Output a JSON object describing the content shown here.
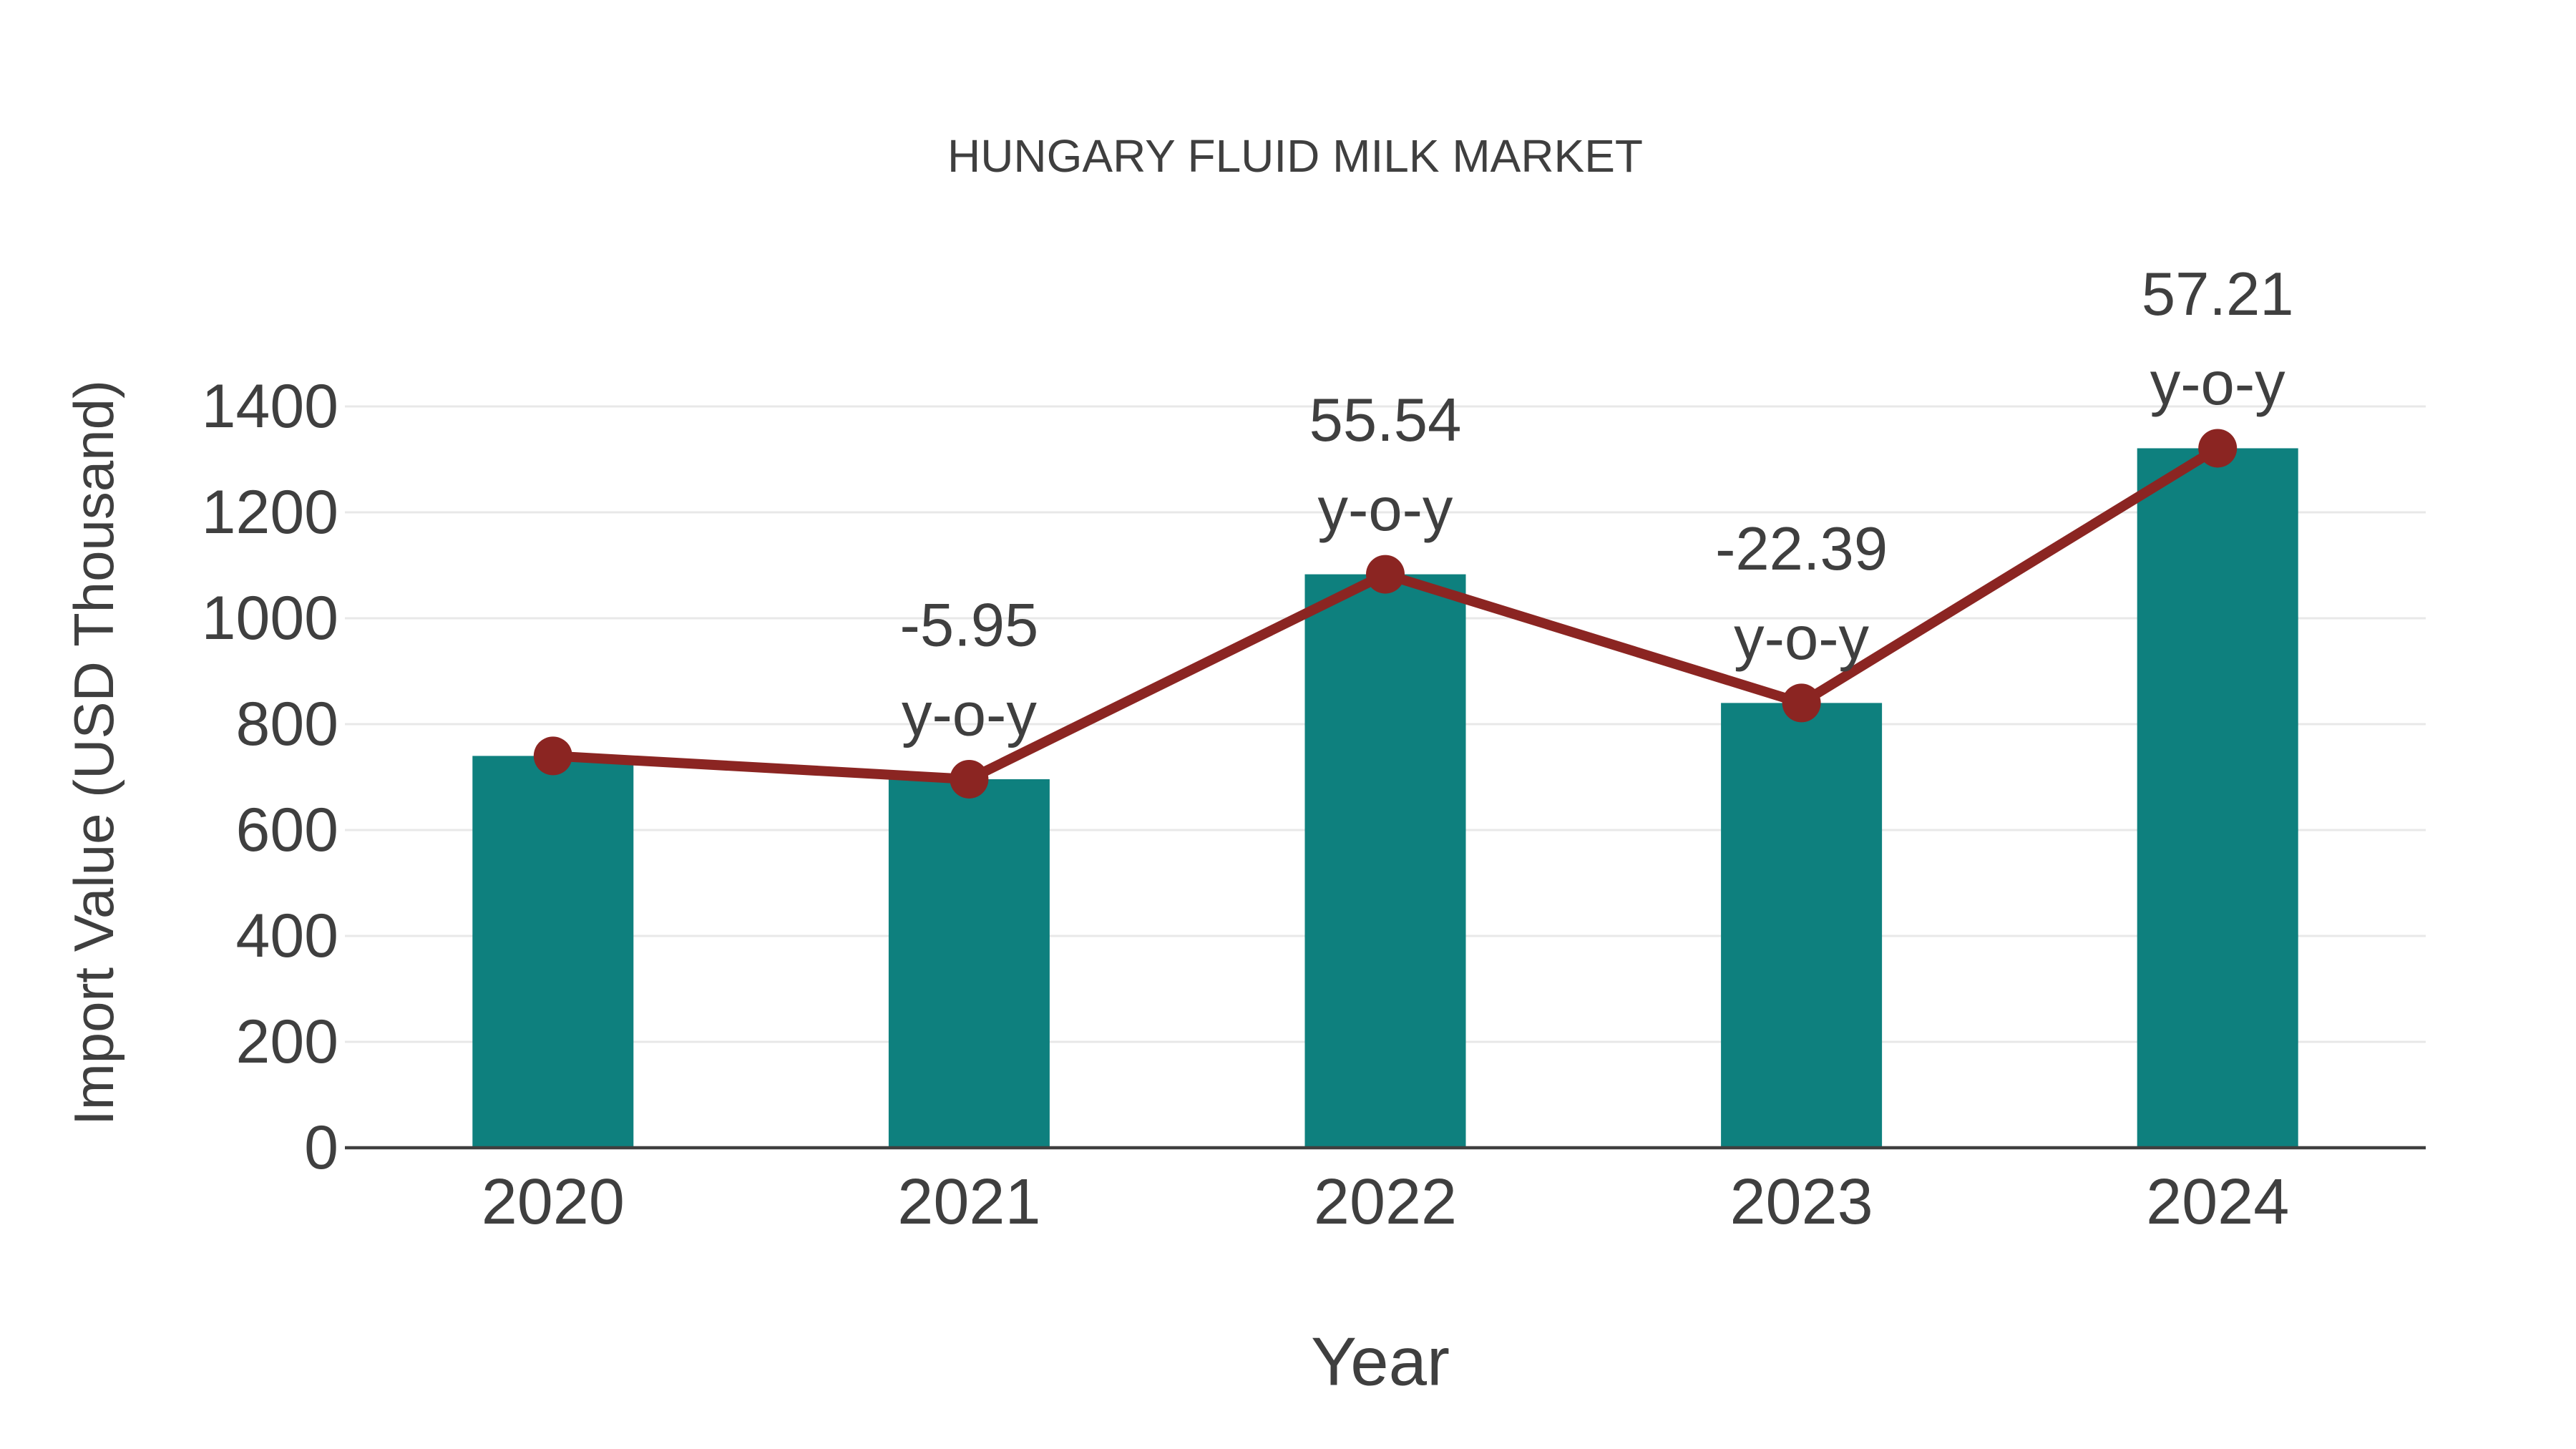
{
  "page": {
    "background": "#ffffff"
  },
  "chart_data": {
    "type": "bar",
    "title": "HUNGARY FLUID MILK MARKET",
    "xlabel": "Year",
    "ylabel": "Import Value (USD Thousand)",
    "categories": [
      "2020",
      "2021",
      "2022",
      "2023",
      "2024"
    ],
    "values": [
      740,
      696,
      1083,
      840,
      1321
    ],
    "line_overlay": {
      "name": "import-value-trend-line",
      "values": [
        740,
        696,
        1083,
        840,
        1321
      ],
      "color": "#8B2522",
      "marker": "circle"
    },
    "annotations": [
      {
        "category": "2021",
        "value_label": "-5.95",
        "sub_label": "y-o-y"
      },
      {
        "category": "2022",
        "value_label": "55.54",
        "sub_label": "y-o-y"
      },
      {
        "category": "2023",
        "value_label": "-22.39",
        "sub_label": "y-o-y"
      },
      {
        "category": "2024",
        "value_label": "57.21",
        "sub_label": "y-o-y"
      }
    ],
    "ylim": [
      0,
      1400
    ],
    "yticks": [
      "0",
      "200",
      "400",
      "600",
      "800",
      "1000",
      "1200",
      "1400"
    ],
    "bar_color": "#0E807E",
    "grid": true,
    "gridline_color": "#E8E8E8",
    "axis_line_color": "#3F3F3F",
    "text_color": "#3F3F3F",
    "legend_position": "none"
  }
}
